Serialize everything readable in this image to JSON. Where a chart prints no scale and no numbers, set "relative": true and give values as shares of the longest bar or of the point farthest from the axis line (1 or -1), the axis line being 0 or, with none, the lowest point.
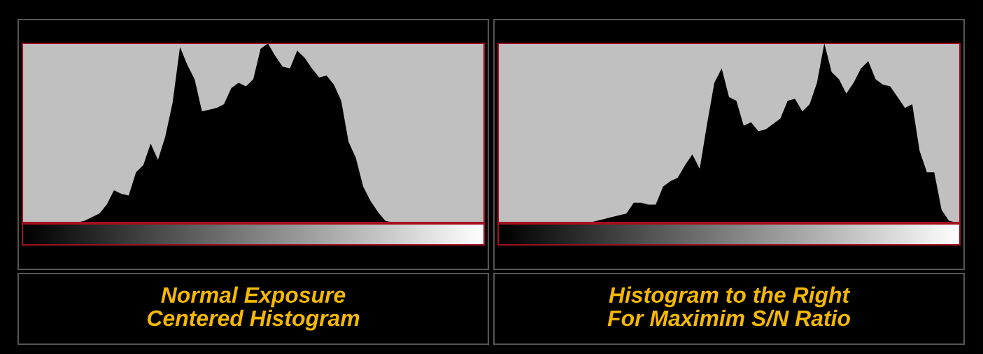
{
  "chart_data": [
    {
      "type": "area",
      "relative": true,
      "title": "Normal Exposure\nCentered Histogram",
      "color": "#000000",
      "categories": [
        null,
        null,
        null,
        null,
        null,
        null,
        null,
        null,
        null,
        null,
        null,
        null,
        null,
        null,
        null,
        null,
        null,
        null,
        null,
        null,
        null,
        null,
        null,
        null,
        null,
        null,
        null,
        null,
        null,
        null,
        null,
        null,
        null,
        null,
        null,
        null,
        null,
        null,
        null,
        null,
        null,
        null,
        null,
        null,
        null,
        null,
        null,
        null,
        null,
        null,
        null,
        null,
        null,
        null,
        null,
        null,
        null,
        null,
        null,
        null,
        null,
        null,
        null
      ],
      "values": [
        0,
        0,
        0,
        0,
        0,
        0,
        0,
        0,
        0.01,
        0.03,
        0.05,
        0.1,
        0.18,
        0.16,
        0.15,
        0.28,
        0.32,
        0.44,
        0.35,
        0.48,
        0.67,
        0.98,
        0.88,
        0.8,
        0.62,
        0.63,
        0.64,
        0.66,
        0.75,
        0.78,
        0.76,
        0.8,
        0.97,
        1.0,
        0.93,
        0.87,
        0.86,
        0.96,
        0.92,
        0.86,
        0.81,
        0.82,
        0.77,
        0.68,
        0.45,
        0.36,
        0.2,
        0.12,
        0.06,
        0.01,
        0,
        0,
        0,
        0,
        0,
        0,
        0,
        0,
        0,
        0,
        0,
        0,
        0
      ]
    },
    {
      "type": "area",
      "relative": true,
      "title": "Histogram to the Right\nFor Maximim S/N Ratio",
      "color": "#000000",
      "categories": [
        null,
        null,
        null,
        null,
        null,
        null,
        null,
        null,
        null,
        null,
        null,
        null,
        null,
        null,
        null,
        null,
        null,
        null,
        null,
        null,
        null,
        null,
        null,
        null,
        null,
        null,
        null,
        null,
        null,
        null,
        null,
        null,
        null,
        null,
        null,
        null,
        null,
        null,
        null,
        null,
        null,
        null,
        null,
        null,
        null,
        null,
        null,
        null,
        null,
        null,
        null,
        null,
        null,
        null,
        null,
        null,
        null,
        null,
        null,
        null,
        null,
        null,
        null
      ],
      "values": [
        0,
        0,
        0,
        0,
        0,
        0,
        0,
        0,
        0,
        0,
        0,
        0,
        0,
        0.01,
        0.02,
        0.03,
        0.04,
        0.05,
        0.11,
        0.11,
        0.1,
        0.1,
        0.2,
        0.23,
        0.25,
        0.32,
        0.38,
        0.3,
        0.55,
        0.78,
        0.86,
        0.7,
        0.68,
        0.54,
        0.56,
        0.51,
        0.52,
        0.55,
        0.58,
        0.68,
        0.69,
        0.62,
        0.66,
        0.78,
        1.0,
        0.84,
        0.8,
        0.72,
        0.78,
        0.86,
        0.9,
        0.8,
        0.77,
        0.76,
        0.7,
        0.64,
        0.66,
        0.4,
        0.28,
        0.28,
        0.07,
        0.01,
        0
      ]
    }
  ]
}
